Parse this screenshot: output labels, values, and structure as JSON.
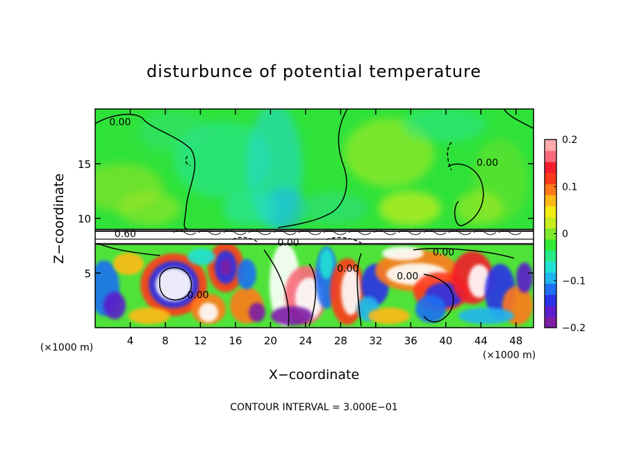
{
  "chart_data": {
    "type": "heatmap",
    "title": "disturbunce of potential temperature",
    "xlabel": "X−coordinate",
    "ylabel": "Z−coordinate",
    "x_unit": "(×1000 m)",
    "y_unit": "(×1000 m)",
    "xlim": [
      0,
      50
    ],
    "ylim": [
      0,
      20
    ],
    "x_ticks": [
      4,
      8,
      12,
      16,
      20,
      24,
      28,
      32,
      36,
      40,
      44,
      48
    ],
    "y_ticks": [
      5,
      10,
      15
    ],
    "grid": false,
    "colorbar": {
      "range": [
        -0.2,
        0.2
      ],
      "ticks": [
        0.2,
        0.1,
        0,
        -0.1,
        -0.2
      ],
      "tick_labels": [
        "0.2",
        "0.1",
        "0",
        "−0.1",
        "−0.2"
      ],
      "colors": [
        "#7d1fa6",
        "#5a1ecc",
        "#2a33e6",
        "#1f6ff2",
        "#21b5f0",
        "#22e0d5",
        "#26e887",
        "#31ea35",
        "#7ee82a",
        "#c8ec1f",
        "#f2ec14",
        "#ffb917",
        "#ff7a1a",
        "#ff3a1c",
        "#f41d2b",
        "#fa6a7c",
        "#ffaaaa"
      ]
    },
    "contour_labels": [
      {
        "text": "0.00",
        "x": 1.6,
        "z": 18.5
      },
      {
        "text": "0.00",
        "x": 43.5,
        "z": 14.8
      },
      {
        "text": "0.60",
        "x": 2.2,
        "z": 8.3
      },
      {
        "text": "0.00",
        "x": 20.8,
        "z": 7.5
      },
      {
        "text": "0.00",
        "x": 38.5,
        "z": 6.6
      },
      {
        "text": "0.00",
        "x": 34.4,
        "z": 4.4
      },
      {
        "text": "0.00",
        "x": 27.6,
        "z": 5.1
      },
      {
        "text": "0.00",
        "x": 10.5,
        "z": 2.7
      }
    ],
    "contour_interval_text": "CONTOUR INTERVAL = 3.000E−01"
  }
}
